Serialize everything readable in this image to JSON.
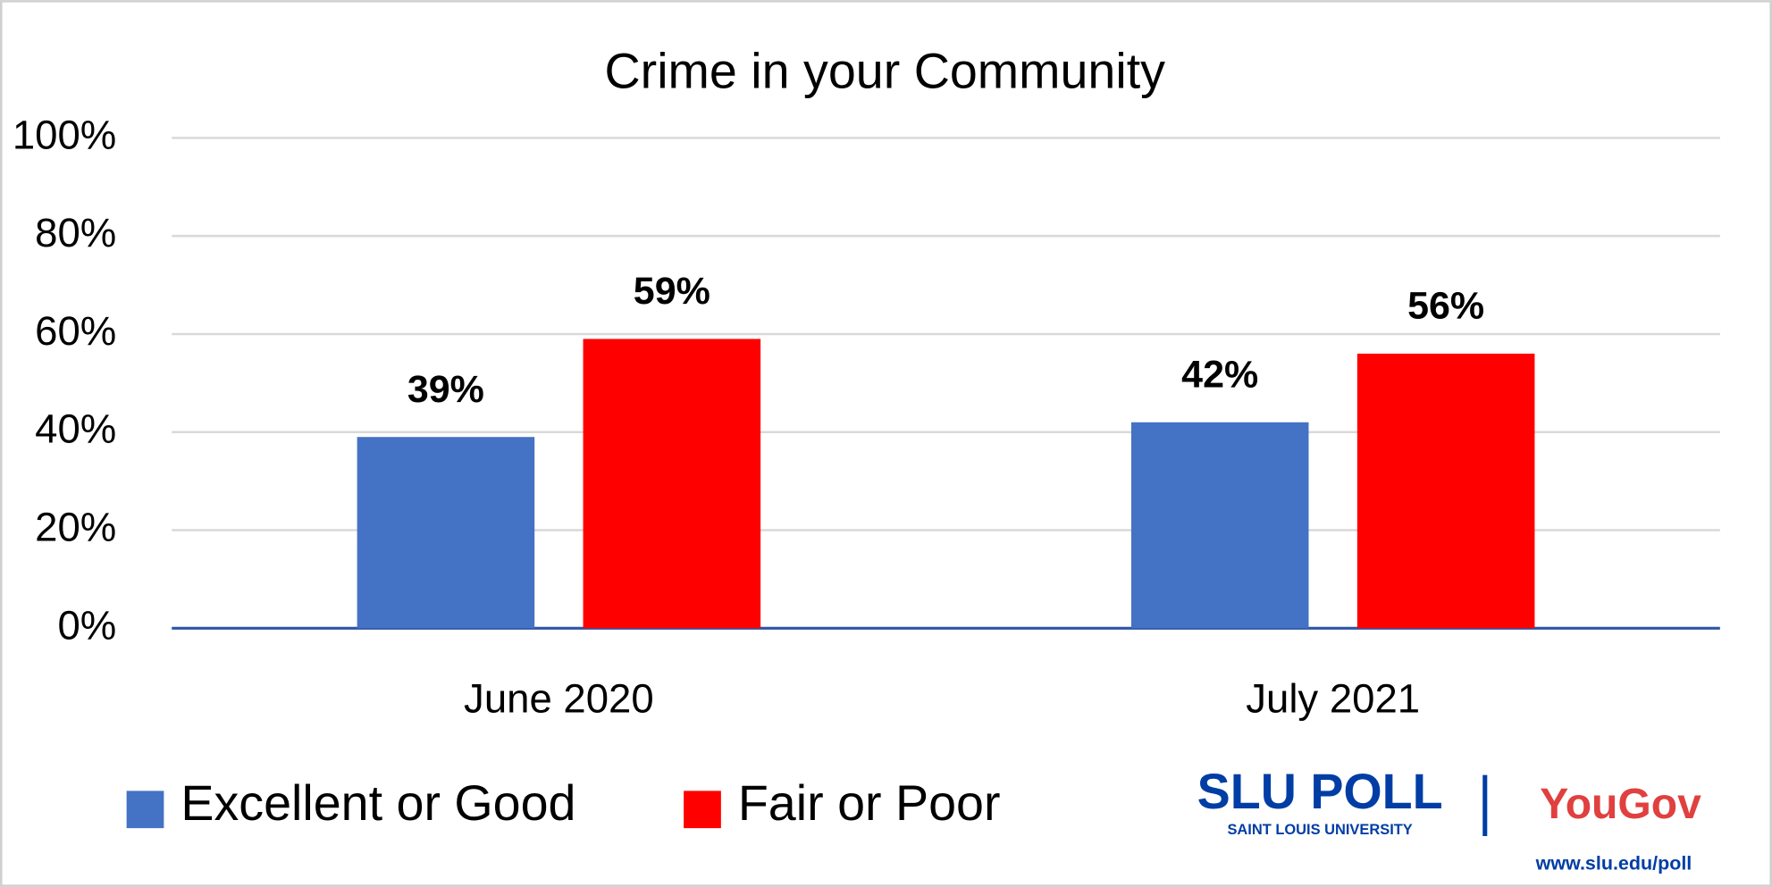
{
  "chart_data": {
    "type": "bar",
    "title": "Crime in your Community",
    "categories": [
      "June 2020",
      "July 2021"
    ],
    "series": [
      {
        "name": "Excellent or Good",
        "color": "#4472c4",
        "values": [
          39,
          42
        ],
        "value_labels": [
          "39%",
          "42%"
        ]
      },
      {
        "name": "Fair or Poor",
        "color": "#ff0000",
        "values": [
          59,
          56
        ],
        "value_labels": [
          "59%",
          "56%"
        ]
      }
    ],
    "ylim": [
      0,
      100
    ],
    "yticks": [
      {
        "value": 0,
        "label": "0%"
      },
      {
        "value": 20,
        "label": "20%"
      },
      {
        "value": 40,
        "label": "40%"
      },
      {
        "value": 60,
        "label": "60%"
      },
      {
        "value": 80,
        "label": "80%"
      },
      {
        "value": 100,
        "label": "100%"
      }
    ],
    "grid": true,
    "legend": "bottom-left"
  },
  "logo": {
    "name": "SLU POLL",
    "university": "SAINT LOUIS UNIVERSITY",
    "partner": "YouGov",
    "url": "www.slu.edu/poll"
  }
}
